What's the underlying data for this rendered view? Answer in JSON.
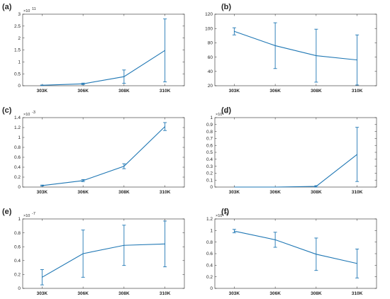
{
  "figure": {
    "line_color": "#1f77b4",
    "axis_color": "#262626"
  },
  "chart_data": [
    {
      "panel_label": "(a)",
      "type": "line",
      "categories": [
        "303K",
        "306K",
        "308K",
        "310K"
      ],
      "values": [
        0.02,
        0.08,
        0.38,
        1.48
      ],
      "errors": [
        0.01,
        0.03,
        0.28,
        1.32
      ],
      "ylim": [
        0,
        3
      ],
      "yticks": [
        "0",
        "0.5",
        "1",
        "1.5",
        "2",
        "2.5",
        "3"
      ],
      "y_exponent_base": "×10",
      "y_exponent_power": "11",
      "grid": false
    },
    {
      "panel_label": "(b)",
      "type": "line",
      "categories": [
        "303K",
        "306K",
        "308K",
        "310K"
      ],
      "values": [
        96,
        76,
        62,
        56
      ],
      "errors": [
        5,
        32,
        37,
        35
      ],
      "ylim": [
        20,
        120
      ],
      "yticks": [
        "20",
        "40",
        "60",
        "80",
        "100",
        "120"
      ],
      "y_exponent_base": "",
      "y_exponent_power": "",
      "grid": false
    },
    {
      "panel_label": "(c)",
      "type": "line",
      "categories": [
        "303K",
        "306K",
        "308K",
        "310K"
      ],
      "values": [
        0.03,
        0.13,
        0.42,
        1.22
      ],
      "errors": [
        0.01,
        0.02,
        0.05,
        0.08
      ],
      "ylim": [
        0,
        1.4
      ],
      "yticks": [
        "0",
        "0.2",
        "0.4",
        "0.6",
        "0.8",
        "1",
        "1.2",
        "1.4"
      ],
      "y_exponent_base": "×10",
      "y_exponent_power": "-3",
      "grid": false
    },
    {
      "panel_label": "(d)",
      "type": "line",
      "categories": [
        "303K",
        "306K",
        "308K",
        "310K"
      ],
      "values": [
        0.0,
        0.0,
        0.01,
        0.47
      ],
      "errors": [
        0.0,
        0.0,
        0.01,
        0.39
      ],
      "ylim": [
        0,
        1
      ],
      "yticks": [
        "0",
        "0.1",
        "0.2",
        "0.3",
        "0.4",
        "0.5",
        "0.6",
        "0.7",
        "0.8",
        "0.9",
        "1"
      ],
      "y_exponent_base": "×10",
      "y_exponent_power": "-3",
      "grid": false
    },
    {
      "panel_label": "(e)",
      "type": "line",
      "categories": [
        "303K",
        "306K",
        "308K",
        "310K"
      ],
      "values": [
        0.16,
        0.5,
        0.62,
        0.64
      ],
      "errors": [
        0.11,
        0.34,
        0.29,
        0.33
      ],
      "ylim": [
        0,
        1
      ],
      "yticks": [
        "0",
        "0.2",
        "0.4",
        "0.6",
        "0.8",
        "1"
      ],
      "y_exponent_base": "×10",
      "y_exponent_power": "-7",
      "grid": false
    },
    {
      "panel_label": "(f)",
      "type": "line",
      "categories": [
        "303K",
        "306K",
        "308K",
        "310K"
      ],
      "values": [
        0.99,
        0.84,
        0.59,
        0.43
      ],
      "errors": [
        0.03,
        0.13,
        0.28,
        0.25
      ],
      "ylim": [
        0,
        1.2
      ],
      "yticks": [
        "0",
        "0.2",
        "0.4",
        "0.6",
        "0.8",
        "1",
        "1.2"
      ],
      "y_exponent_base": "×10",
      "y_exponent_power": "-5",
      "grid": false
    }
  ]
}
